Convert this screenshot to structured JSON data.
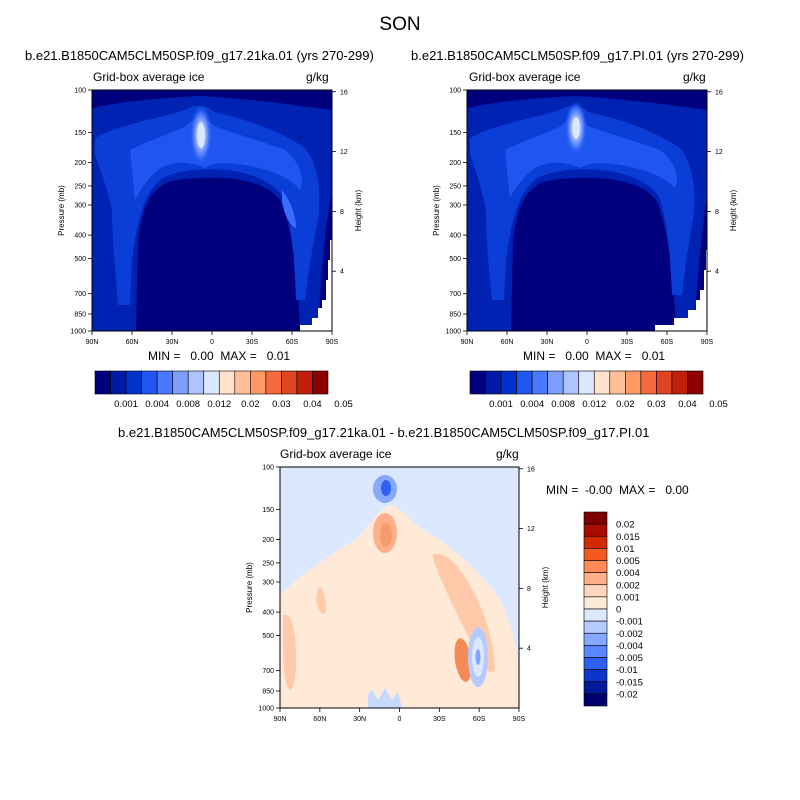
{
  "figure": {
    "title": "SON",
    "left": {
      "case_title": "b.e21.B1850CAM5CLM50SP.f09_g17.21ka.01 (yrs 270-299)",
      "variable": "Grid-box average ice",
      "units": "g/kg",
      "stats": "MIN =   0.00  MAX =   0.01"
    },
    "right": {
      "case_title": "b.e21.B1850CAM5CLM50SP.f09_g17.PI.01 (yrs 270-299)",
      "variable": "Grid-box average ice",
      "units": "g/kg",
      "stats": "MIN =   0.00  MAX =   0.01"
    },
    "diff": {
      "case_title": "b.e21.B1850CAM5CLM50SP.f09_g17.21ka.01 - b.e21.B1850CAM5CLM50SP.f09_g17.PI.01",
      "variable": "Grid-box average ice",
      "units": "g/kg",
      "stats": "MIN =  -0.00  MAX =   0.00"
    }
  },
  "chart_data": [
    {
      "type": "heatmap",
      "title": "b.e21.B1850CAM5CLM50SP.f09_g17.21ka.01 (yrs 270-299)",
      "subtitle": "Grid-box average ice",
      "units": "g/kg",
      "xlabel": "",
      "ylabel": "Pressure (mb)",
      "y2label": "Height (km)",
      "x_ticks": [
        "90N",
        "60N",
        "30N",
        "0",
        "30S",
        "60S",
        "90S"
      ],
      "y_ticks": [
        "100",
        "150",
        "200",
        "250",
        "300",
        "400",
        "500",
        "700",
        "850",
        "1000"
      ],
      "y2_ticks": [
        "16",
        "12",
        "8",
        "4"
      ],
      "min": 0.0,
      "max": 0.01,
      "colorbar_levels": [
        "0.001",
        "0.004",
        "0.008",
        "0.012",
        "0.02",
        "0.03",
        "0.04",
        "0.05"
      ]
    },
    {
      "type": "heatmap",
      "title": "b.e21.B1850CAM5CLM50SP.f09_g17.PI.01 (yrs 270-299)",
      "subtitle": "Grid-box average ice",
      "units": "g/kg",
      "xlabel": "",
      "ylabel": "Pressure (mb)",
      "y2label": "Height (km)",
      "x_ticks": [
        "90N",
        "60N",
        "30N",
        "0",
        "30S",
        "60S",
        "90S"
      ],
      "y_ticks": [
        "100",
        "150",
        "200",
        "250",
        "300",
        "400",
        "500",
        "700",
        "850",
        "1000"
      ],
      "y2_ticks": [
        "16",
        "12",
        "8",
        "4"
      ],
      "min": 0.0,
      "max": 0.01,
      "colorbar_levels": [
        "0.001",
        "0.004",
        "0.008",
        "0.012",
        "0.02",
        "0.03",
        "0.04",
        "0.05"
      ]
    },
    {
      "type": "heatmap",
      "title": "b.e21.B1850CAM5CLM50SP.f09_g17.21ka.01 - b.e21.B1850CAM5CLM50SP.f09_g17.PI.01",
      "subtitle": "Grid-box average ice",
      "units": "g/kg",
      "xlabel": "",
      "ylabel": "Pressure (mb)",
      "y2label": "Height (km)",
      "x_ticks": [
        "90N",
        "60N",
        "30N",
        "0",
        "30S",
        "60S",
        "90S"
      ],
      "y_ticks": [
        "100",
        "150",
        "200",
        "250",
        "300",
        "400",
        "500",
        "700",
        "850",
        "1000"
      ],
      "y2_ticks": [
        "16",
        "12",
        "8",
        "4"
      ],
      "min": -0.0,
      "max": 0.0,
      "colorbar_levels": [
        "0.02",
        "0.015",
        "0.01",
        "0.005",
        "0.004",
        "0.002",
        "0.001",
        "0",
        "-0.001",
        "-0.002",
        "-0.004",
        "-0.005",
        "-0.01",
        "-0.015",
        "-0.02"
      ]
    }
  ],
  "colors": {
    "seq": [
      "#00007f",
      "#001aa6",
      "#0033cc",
      "#1e56ef",
      "#4a78ff",
      "#7b9eff",
      "#aec4ff",
      "#dbe6ff",
      "#ffe1cc",
      "#ffbf99",
      "#ff9966",
      "#f56b3d",
      "#e04420",
      "#bf1f0b",
      "#8c0000"
    ],
    "div_bar": [
      "#7f0000",
      "#a80d00",
      "#d12a00",
      "#f25a1f",
      "#ff8a57",
      "#ffb08a",
      "#ffd6bd",
      "#ffe9d7",
      "#dce8ff",
      "#b5cbff",
      "#86a8ff",
      "#5a86ff",
      "#2f60f2",
      "#0d35cc",
      "#001a99",
      "#00006e"
    ]
  }
}
